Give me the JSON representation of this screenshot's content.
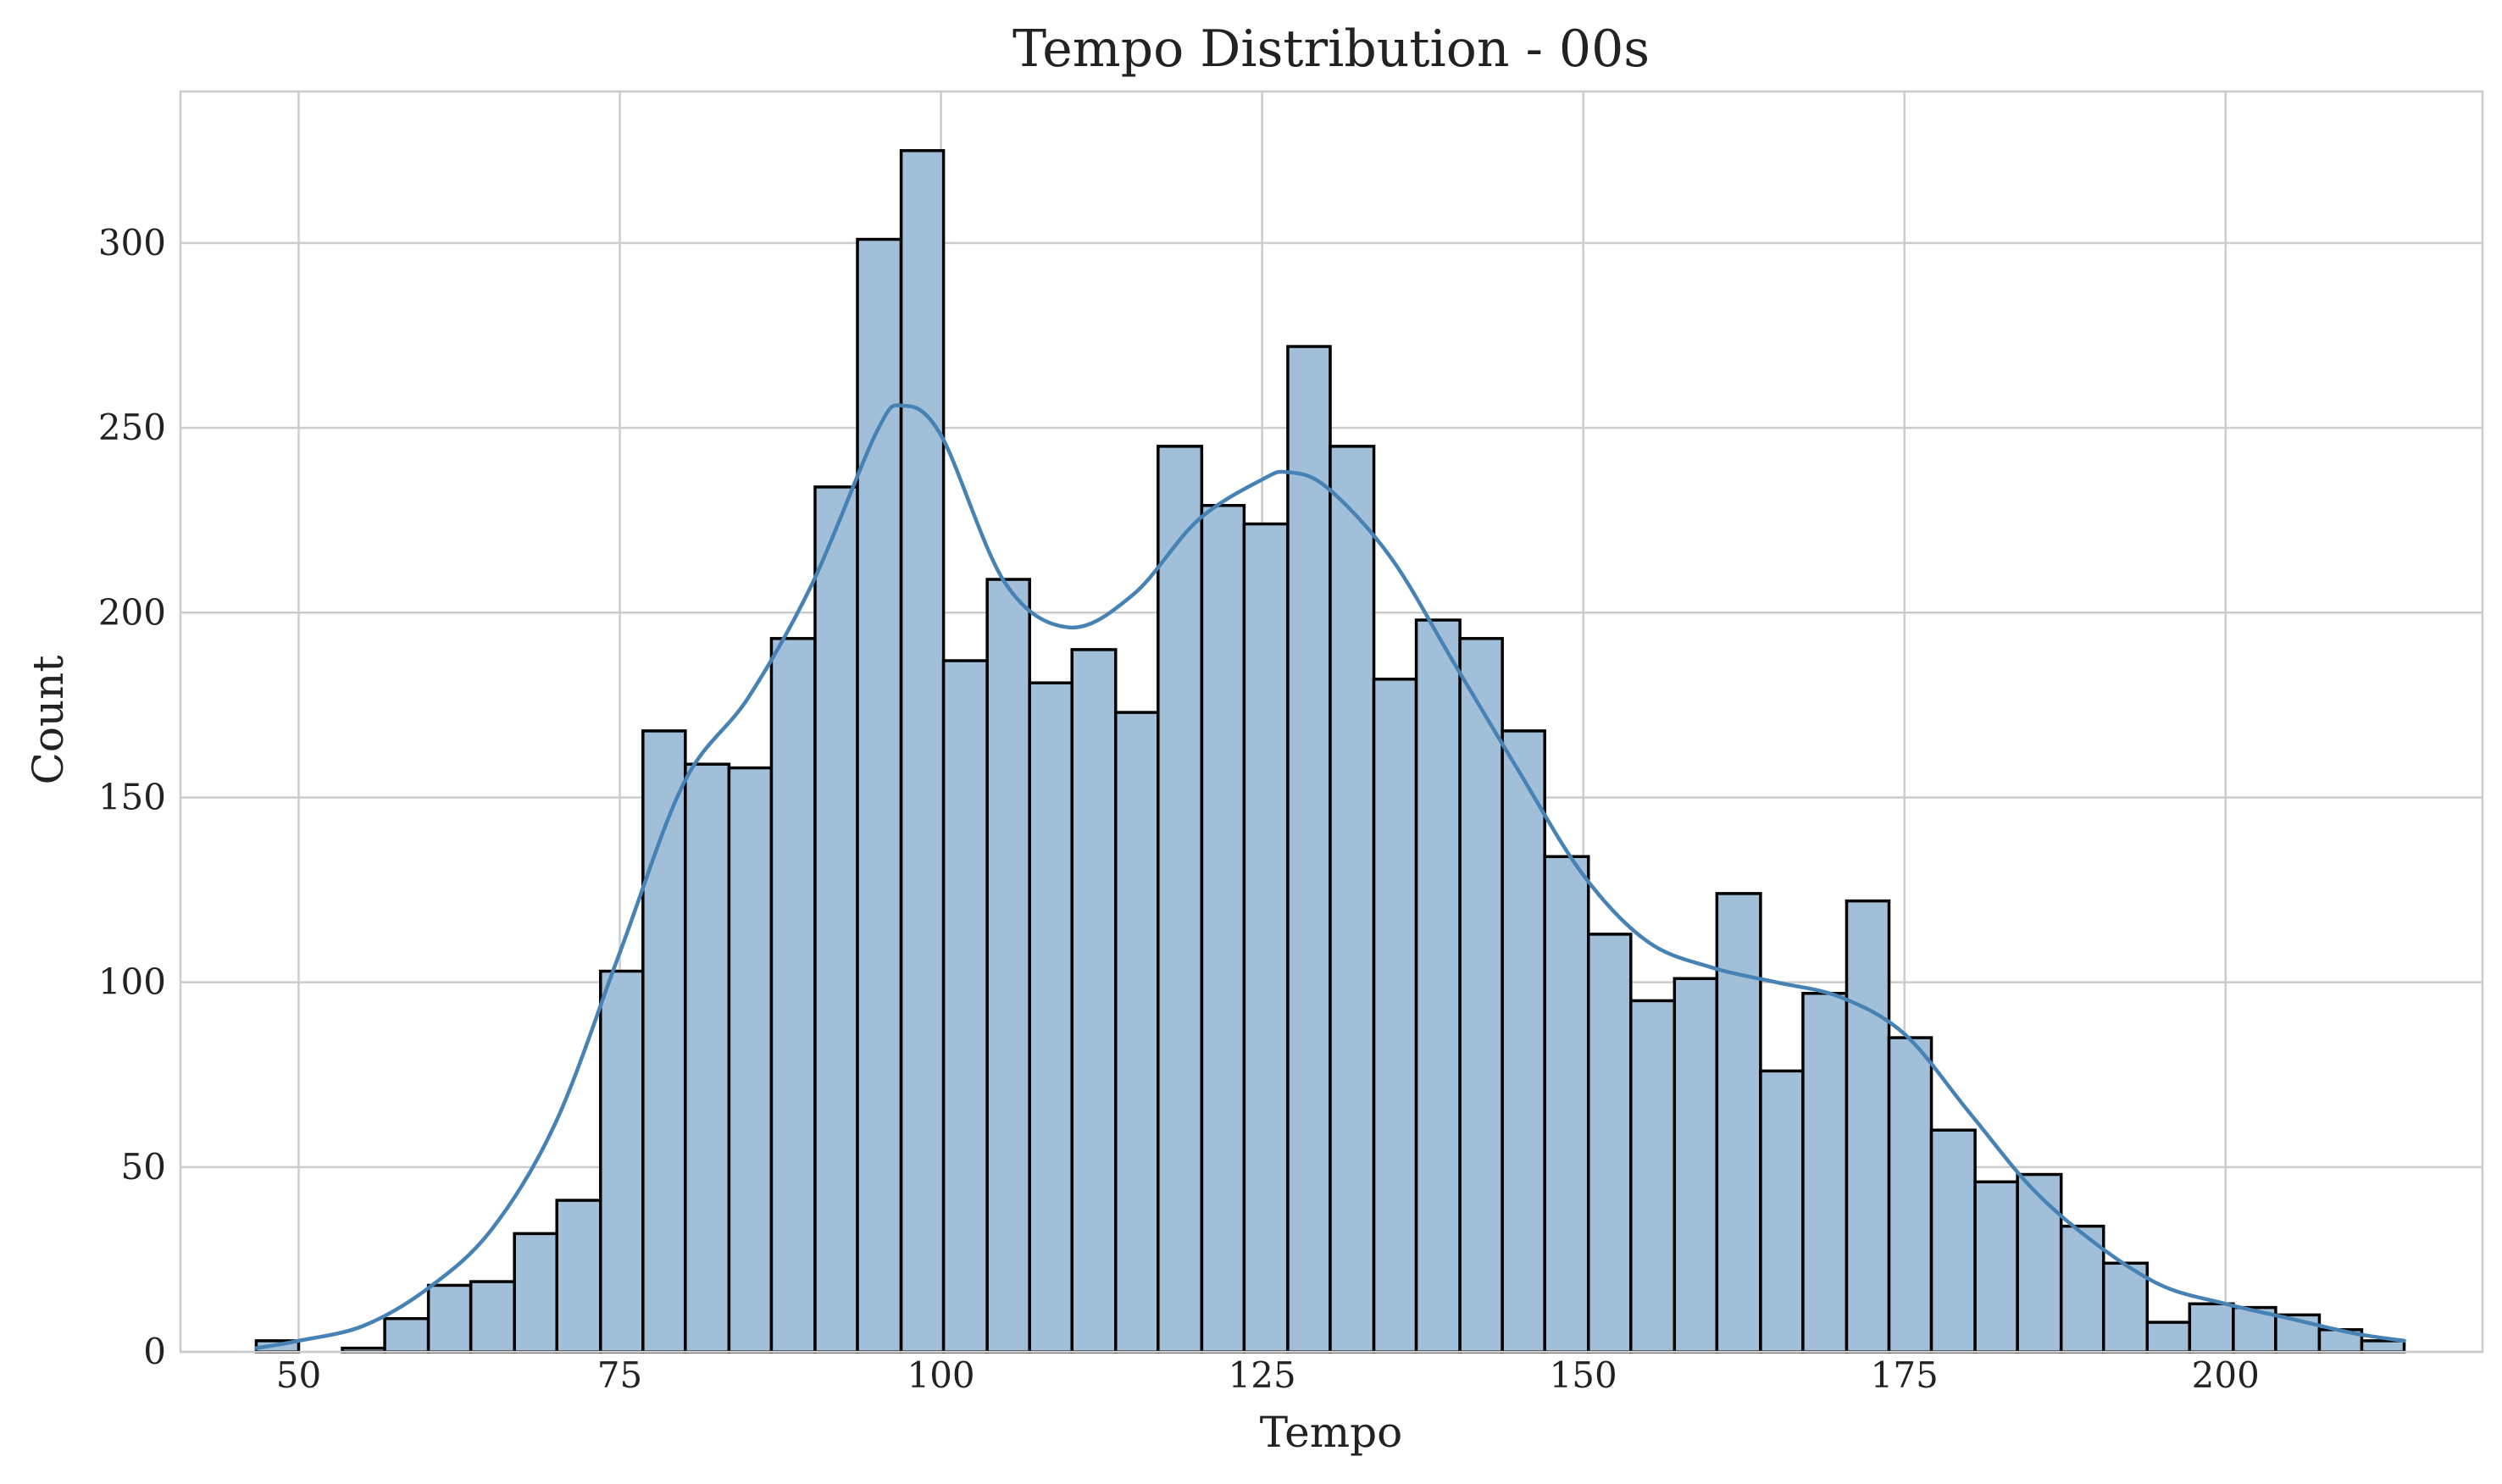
{
  "chart_data": {
    "type": "bar",
    "subtype": "histogram-with-kde",
    "title": "Tempo Distribution - 00s",
    "xlabel": "Tempo",
    "ylabel": "Count",
    "xlim": [
      40.8,
      220.0
    ],
    "ylim": [
      0,
      341
    ],
    "x_ticks": [
      50,
      75,
      100,
      125,
      150,
      175,
      200
    ],
    "y_ticks": [
      0,
      50,
      100,
      150,
      200,
      250,
      300
    ],
    "grid": true,
    "bin_edges": [
      46.7,
      50.0,
      53.4,
      56.7,
      60.1,
      63.4,
      66.8,
      70.1,
      73.5,
      76.8,
      80.1,
      83.5,
      86.8,
      90.2,
      93.5,
      96.9,
      100.2,
      103.6,
      106.9,
      110.2,
      113.6,
      116.9,
      120.3,
      123.6,
      127.0,
      130.3,
      133.7,
      137.0,
      140.4,
      143.7,
      147.0,
      150.4,
      153.7,
      157.1,
      160.4,
      163.8,
      167.1,
      170.5,
      173.8,
      177.1,
      180.5,
      183.8,
      187.2,
      190.5,
      193.9,
      197.2,
      200.6,
      203.9,
      207.3,
      210.6,
      213.9
    ],
    "counts": [
      3,
      0,
      1,
      9,
      18,
      19,
      32,
      41,
      103,
      168,
      159,
      158,
      193,
      234,
      301,
      325,
      187,
      209,
      181,
      190,
      173,
      245,
      229,
      224,
      272,
      245,
      182,
      198,
      193,
      168,
      134,
      113,
      95,
      101,
      124,
      76,
      97,
      122,
      85,
      60,
      46,
      48,
      34,
      24,
      8,
      13,
      12,
      10,
      6,
      3
    ],
    "kde": {
      "x": [
        46.7,
        50,
        55,
        60,
        65,
        70,
        75,
        80,
        85,
        90,
        95,
        97,
        100,
        105,
        110,
        115,
        120,
        125,
        127,
        130,
        135,
        140,
        145,
        150,
        155,
        160,
        165,
        170,
        175,
        180,
        185,
        190,
        195,
        200,
        205,
        210,
        213.9
      ],
      "y": [
        1,
        3,
        7,
        17,
        33,
        62,
        108,
        154,
        177,
        208,
        249,
        256,
        248,
        208,
        196,
        205,
        225,
        236,
        238,
        234,
        215,
        186,
        157,
        129,
        111,
        104,
        100,
        96,
        86,
        65,
        44,
        29,
        18,
        13,
        9,
        5,
        3
      ]
    },
    "colors": {
      "bar_fill": "#a2bfda",
      "bar_edge": "#000000",
      "kde_line": "#4682b4"
    }
  }
}
